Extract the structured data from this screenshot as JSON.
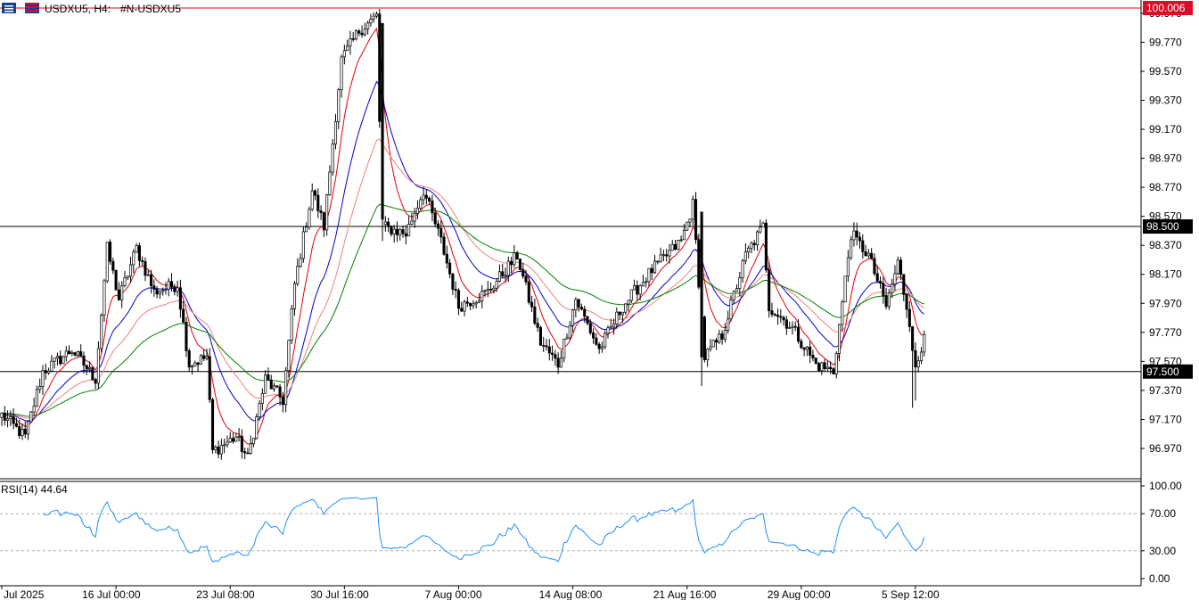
{
  "header": {
    "symbol_label": "USDXU5, H4:",
    "description": "#N-USDXU5"
  },
  "price_axis": {
    "ticks": [
      "99.970",
      "99.770",
      "99.570",
      "99.370",
      "99.170",
      "98.970",
      "98.770",
      "98.570",
      "98.370",
      "98.170",
      "97.970",
      "97.770",
      "97.570",
      "97.370",
      "97.170",
      "96.970"
    ],
    "tick_values": [
      99.97,
      99.77,
      99.57,
      99.37,
      99.17,
      98.97,
      98.77,
      98.57,
      98.37,
      98.17,
      97.97,
      97.77,
      97.57,
      97.37,
      97.17,
      96.97
    ],
    "range": [
      96.83,
      100.02
    ]
  },
  "level_labels": {
    "high_line": "100.006",
    "resistance": "98.500",
    "support": "97.500"
  },
  "rsi_panel": {
    "title": "RSI(14) 44.64",
    "ticks": [
      "100.00",
      "70.00",
      "30.00",
      "0.00"
    ],
    "tick_values": [
      100,
      70,
      30,
      0
    ],
    "levels": [
      70,
      30
    ]
  },
  "time_axis": {
    "labels": [
      "Jul 2025",
      "16 Jul 00:00",
      "23 Jul 08:00",
      "30 Jul 16:00",
      "7 Aug 00:00",
      "14 Aug 08:00",
      "21 Aug 16:00",
      "29 Aug 00:00",
      "5 Sep 12:00"
    ],
    "label_bar_index": [
      0,
      39,
      78,
      117,
      156,
      195,
      234,
      273,
      312
    ]
  },
  "colors": {
    "bull_body": "#ffffff",
    "bear_body": "#000000",
    "ma_fast": "#e0000b",
    "ma_mid": "#0000cc",
    "ma_slow_red": "#f08080",
    "ma_long": "#008000",
    "rsi_line": "#1e90ff",
    "high_label_bg": "#d90d26",
    "level_label_bg": "#000000"
  },
  "chart_data": {
    "type": "candlestick",
    "title": "",
    "series_note": "H4 OHLC with moving averages and RSI(14)",
    "x_note": "bar index; 39 H4 bars between date labels",
    "bars_count": 316,
    "anchors": [
      {
        "bar": 0,
        "price": 97.2
      },
      {
        "bar": 8,
        "price": 97.05
      },
      {
        "bar": 14,
        "price": 97.5
      },
      {
        "bar": 24,
        "price": 97.65
      },
      {
        "bar": 32,
        "price": 97.45
      },
      {
        "bar": 36,
        "price": 98.35
      },
      {
        "bar": 40,
        "price": 98.0
      },
      {
        "bar": 46,
        "price": 98.35
      },
      {
        "bar": 52,
        "price": 98.05
      },
      {
        "bar": 60,
        "price": 98.1
      },
      {
        "bar": 64,
        "price": 97.55
      },
      {
        "bar": 70,
        "price": 97.6
      },
      {
        "bar": 72,
        "price": 96.95
      },
      {
        "bar": 80,
        "price": 97.05
      },
      {
        "bar": 84,
        "price": 96.9
      },
      {
        "bar": 90,
        "price": 97.45
      },
      {
        "bar": 96,
        "price": 97.3
      },
      {
        "bar": 100,
        "price": 98.1
      },
      {
        "bar": 106,
        "price": 98.75
      },
      {
        "bar": 110,
        "price": 98.5
      },
      {
        "bar": 116,
        "price": 99.65
      },
      {
        "bar": 122,
        "price": 99.85
      },
      {
        "bar": 128,
        "price": 99.95
      },
      {
        "bar": 130,
        "price": 98.5
      },
      {
        "bar": 138,
        "price": 98.45
      },
      {
        "bar": 144,
        "price": 98.75
      },
      {
        "bar": 150,
        "price": 98.4
      },
      {
        "bar": 156,
        "price": 97.95
      },
      {
        "bar": 166,
        "price": 98.05
      },
      {
        "bar": 176,
        "price": 98.3
      },
      {
        "bar": 184,
        "price": 97.7
      },
      {
        "bar": 190,
        "price": 97.55
      },
      {
        "bar": 196,
        "price": 98.0
      },
      {
        "bar": 204,
        "price": 97.65
      },
      {
        "bar": 212,
        "price": 97.95
      },
      {
        "bar": 222,
        "price": 98.2
      },
      {
        "bar": 232,
        "price": 98.4
      },
      {
        "bar": 236,
        "price": 98.65
      },
      {
        "bar": 240,
        "price": 97.6
      },
      {
        "bar": 246,
        "price": 97.75
      },
      {
        "bar": 254,
        "price": 98.3
      },
      {
        "bar": 260,
        "price": 98.5
      },
      {
        "bar": 262,
        "price": 97.95
      },
      {
        "bar": 270,
        "price": 97.8
      },
      {
        "bar": 278,
        "price": 97.55
      },
      {
        "bar": 284,
        "price": 97.5
      },
      {
        "bar": 290,
        "price": 98.45
      },
      {
        "bar": 296,
        "price": 98.3
      },
      {
        "bar": 302,
        "price": 97.95
      },
      {
        "bar": 306,
        "price": 98.25
      },
      {
        "bar": 310,
        "price": 97.85
      },
      {
        "bar": 312,
        "price": 97.5
      },
      {
        "bar": 314,
        "price": 97.65
      },
      {
        "bar": 315,
        "price": 97.8
      }
    ],
    "levels": [
      {
        "name": "high_line",
        "price": 100.006
      },
      {
        "name": "resistance",
        "price": 98.5
      },
      {
        "name": "support",
        "price": 97.5
      }
    ],
    "moving_averages": [
      {
        "name": "fast",
        "period": 8
      },
      {
        "name": "mid",
        "period": 20
      },
      {
        "name": "slow",
        "period": 34
      },
      {
        "name": "long",
        "period": 60
      }
    ],
    "rsi_period": 14,
    "rsi_last": 44.64,
    "rsi_range": [
      0,
      100
    ]
  }
}
